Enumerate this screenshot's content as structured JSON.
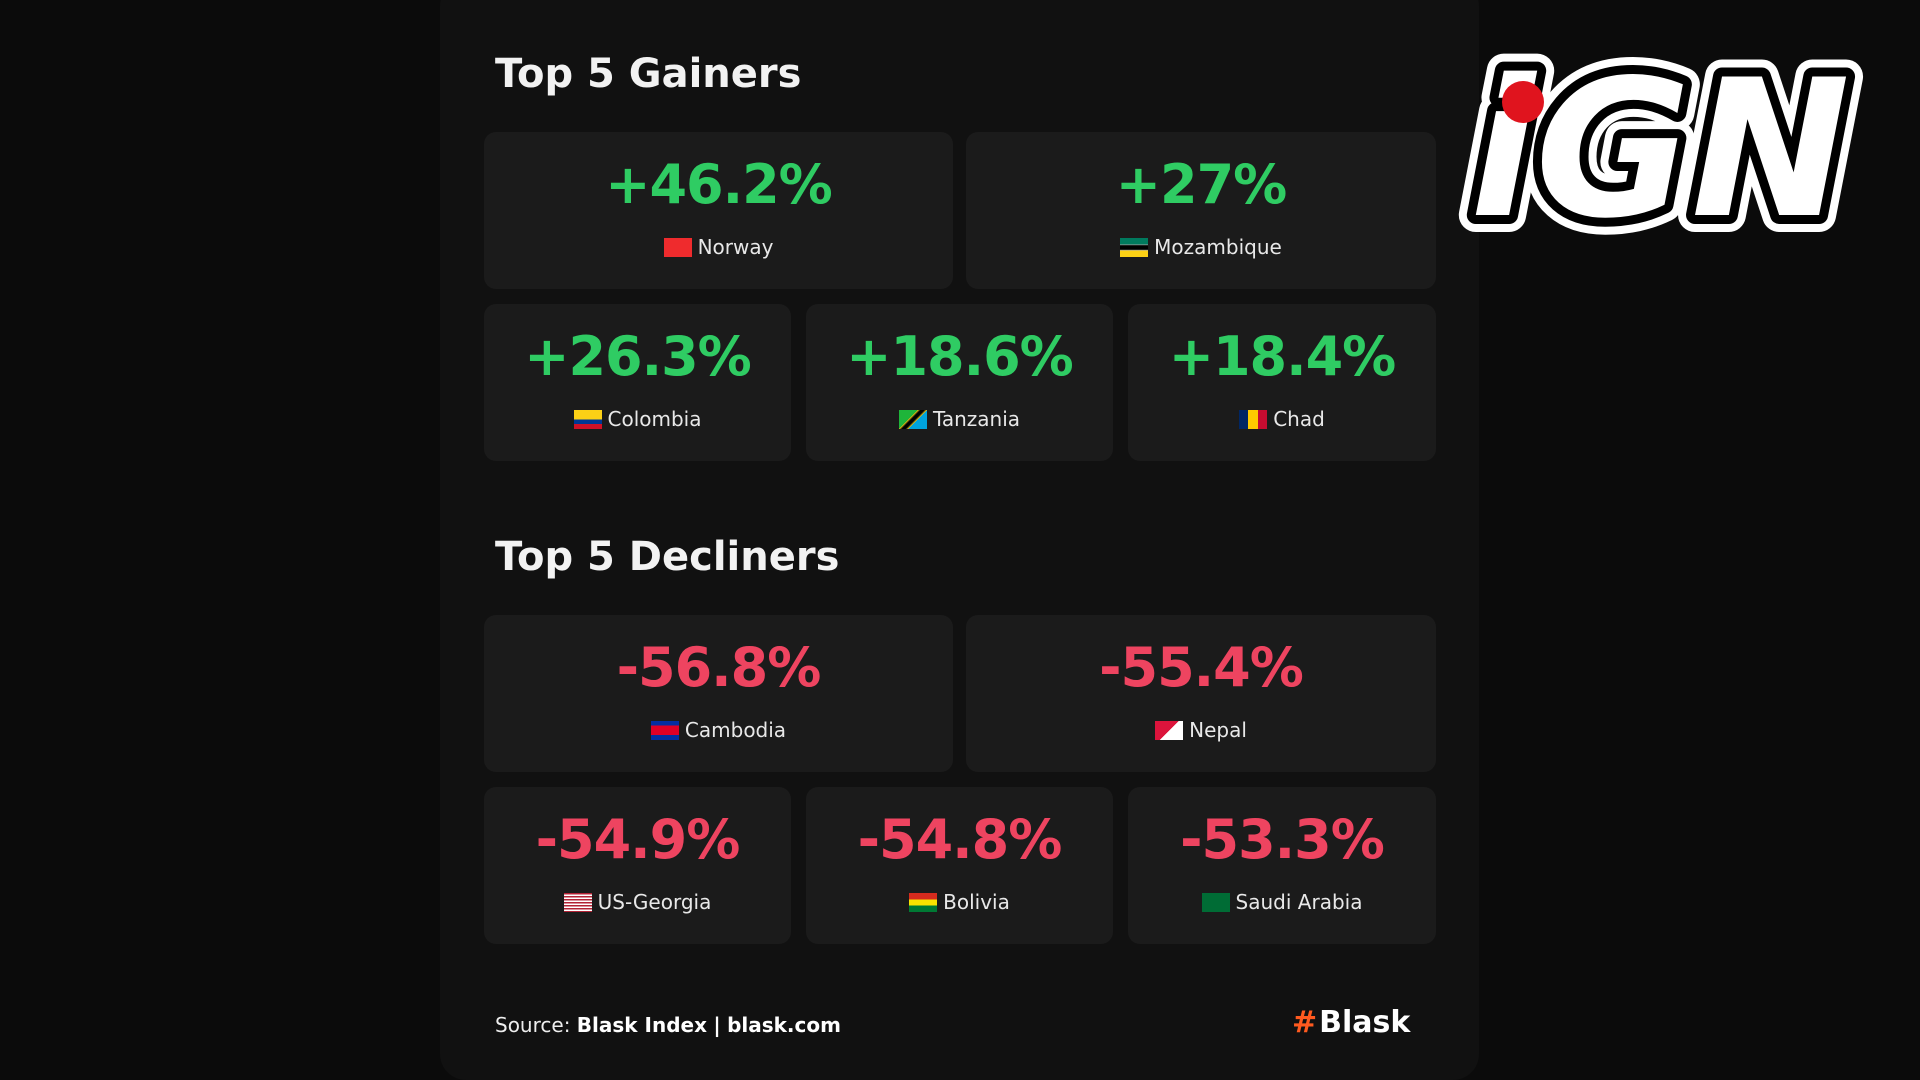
{
  "logo": "iGN",
  "gainers": {
    "title": "Top 5 Gainers",
    "items": [
      {
        "value": "+46.2%",
        "country": "Norway"
      },
      {
        "value": "+27%",
        "country": "Mozambique"
      },
      {
        "value": "+26.3%",
        "country": "Colombia"
      },
      {
        "value": "+18.6%",
        "country": "Tanzania"
      },
      {
        "value": "+18.4%",
        "country": "Chad"
      }
    ]
  },
  "decliners": {
    "title": "Top 5 Decliners",
    "items": [
      {
        "value": "-56.8%",
        "country": "Cambodia"
      },
      {
        "value": "-55.4%",
        "country": "Nepal"
      },
      {
        "value": "-54.9%",
        "country": "US-Georgia"
      },
      {
        "value": "-54.8%",
        "country": "Bolivia"
      },
      {
        "value": "-53.3%",
        "country": "Saudi Arabia"
      }
    ]
  },
  "footer": {
    "label": "Source:",
    "source": "Blask Index",
    "separator": "|",
    "site": "blask.com",
    "brand": "Blask"
  }
}
